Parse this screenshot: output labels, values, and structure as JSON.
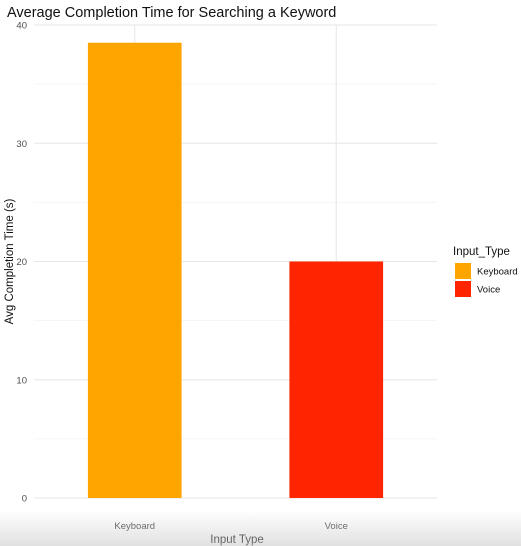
{
  "chart_data": {
    "type": "bar",
    "title": "Average Completion Time for Searching a Keyword",
    "xlabel": "Input Type",
    "ylabel": "Avg Completion Time (s)",
    "categories": [
      "Keyboard",
      "Voice"
    ],
    "values": [
      38.5,
      20.0
    ],
    "colors": [
      "#FFA500",
      "#FF2500"
    ],
    "ylim": [
      0,
      40
    ],
    "yticks": [
      0,
      10,
      20,
      30,
      40
    ],
    "grid": true,
    "legend": {
      "title": "Input_Type",
      "position": "right",
      "entries": [
        "Keyboard",
        "Voice"
      ]
    }
  }
}
